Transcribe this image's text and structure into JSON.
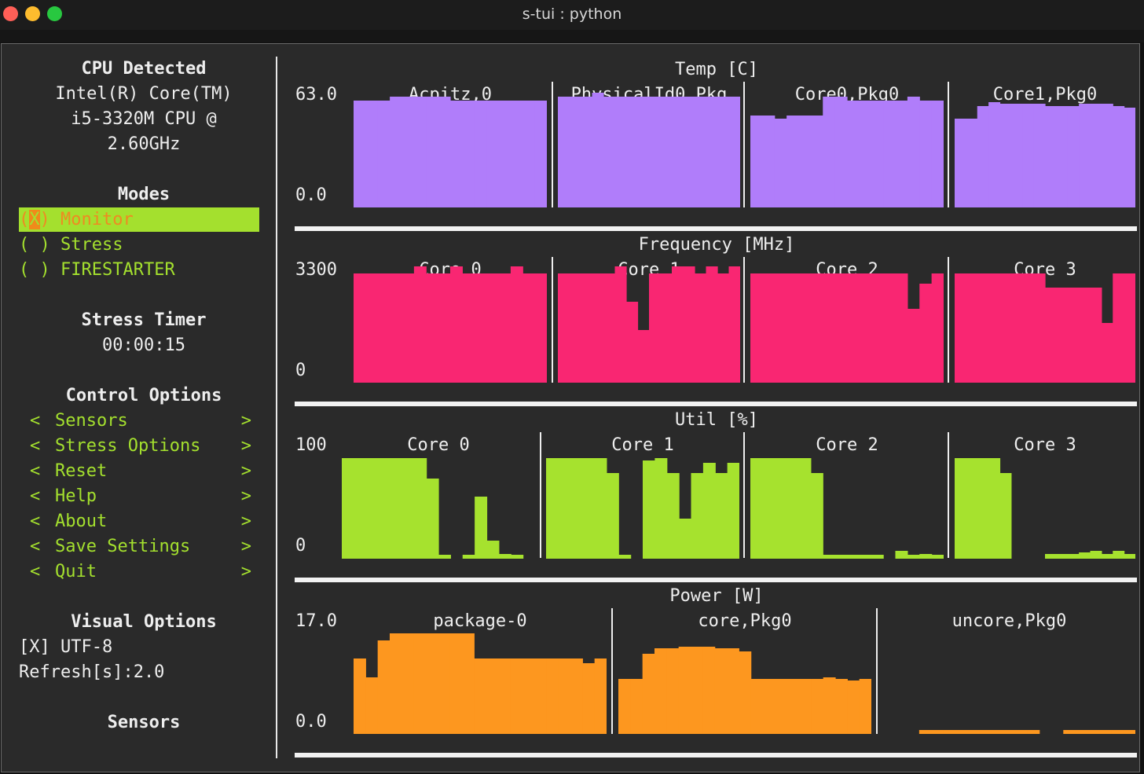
{
  "window": {
    "title": "s-tui : python"
  },
  "sidebar": {
    "cpu_header": "CPU Detected",
    "cpu_lines": [
      "Intel(R) Core(TM)",
      "i5-3320M CPU @",
      "2.60GHz"
    ],
    "modes_header": "Modes",
    "modes": [
      {
        "prefix": "(",
        "mark": "X",
        "suffix": ") Monitor",
        "selected": true
      },
      {
        "prefix": "(",
        "mark": " ",
        "suffix": ") Stress",
        "selected": false
      },
      {
        "prefix": "(",
        "mark": " ",
        "suffix": ") FIRESTARTER",
        "selected": false
      }
    ],
    "stress_timer_header": "Stress Timer",
    "stress_timer": "00:00:15",
    "control_header": "Control Options",
    "control_options": [
      "Sensors",
      "Stress Options",
      "Reset",
      "Help",
      "About",
      "Save Settings",
      "Quit"
    ],
    "arrow_left": "<",
    "arrow_right": ">",
    "visual_header": "Visual Options",
    "utf8_option": "[X] UTF-8",
    "refresh": "Refresh[s]:2.0",
    "sensors_header": "Sensors"
  },
  "colors": {
    "temp": "#b07dfa",
    "freq": "#f92672",
    "util": "#a6e22e",
    "power": "#fd971f",
    "accent": "#a4e02e",
    "selected_text": "#ef8a22"
  },
  "graphs": [
    {
      "title": "Temp [C]",
      "ymax": "63.0",
      "ymin": "0.0",
      "color": "#b07dfa",
      "ylim": [
        0,
        63.0
      ],
      "sensors": [
        {
          "name": "Acpitz,0",
          "values": [
            58,
            58,
            58,
            60,
            60,
            60,
            60,
            60,
            58,
            58,
            58,
            58,
            58,
            58,
            58,
            58
          ]
        },
        {
          "name": "PhysicalId0,Pkg",
          "values": [
            60,
            60,
            60,
            62,
            60,
            60,
            60,
            60,
            60,
            60,
            60,
            60,
            60,
            60,
            60,
            60
          ]
        },
        {
          "name": "Core0,Pkg0",
          "values": [
            50,
            50,
            48,
            50,
            50,
            50,
            60,
            60,
            58,
            58,
            58,
            58,
            58,
            60,
            58,
            58
          ]
        },
        {
          "name": "Core1,Pkg0",
          "values": [
            48,
            48,
            55,
            57,
            56,
            56,
            56,
            56,
            55,
            55,
            55,
            56,
            56,
            56,
            55,
            54
          ]
        }
      ]
    },
    {
      "title": "Frequency [MHz]",
      "ymax": "3300",
      "ymin": "0",
      "color": "#f92672",
      "ylim": [
        0,
        3300
      ],
      "sensors": [
        {
          "name": "Core 0",
          "values": [
            3100,
            3100,
            3100,
            3100,
            3100,
            3300,
            3100,
            3100,
            3300,
            3100,
            3100,
            3100,
            3100,
            3300,
            3100,
            3100
          ]
        },
        {
          "name": "Core 1",
          "values": [
            3100,
            3100,
            3100,
            3100,
            3100,
            3300,
            2300,
            1500,
            3100,
            3100,
            3300,
            3300,
            3100,
            3300,
            3100,
            3300
          ]
        },
        {
          "name": "Core 2",
          "values": [
            3100,
            3100,
            3100,
            3100,
            3100,
            3100,
            3100,
            3100,
            3100,
            3100,
            3100,
            3100,
            3100,
            2100,
            2800,
            3100
          ]
        },
        {
          "name": "Core 3",
          "values": [
            3100,
            3100,
            3100,
            3100,
            3100,
            3100,
            3100,
            3100,
            2700,
            2700,
            2700,
            2700,
            2700,
            1700,
            3100,
            3100
          ]
        }
      ]
    },
    {
      "title": "Util [%]",
      "ymax": "100",
      "ymin": "0",
      "color": "#a6e22e",
      "ylim": [
        0,
        100
      ],
      "sensors": [
        {
          "name": "Core 0",
          "values": [
            100,
            100,
            100,
            100,
            100,
            100,
            100,
            80,
            2,
            0,
            2,
            62,
            18,
            5,
            2,
            0
          ]
        },
        {
          "name": "Core 1",
          "values": [
            100,
            100,
            100,
            100,
            100,
            85,
            2,
            0,
            98,
            100,
            85,
            40,
            85,
            95,
            85,
            95
          ]
        },
        {
          "name": "Core 2",
          "values": [
            100,
            100,
            100,
            100,
            100,
            85,
            2,
            2,
            2,
            2,
            2,
            0,
            8,
            2,
            5,
            2
          ]
        },
        {
          "name": "Core 3",
          "values": [
            100,
            100,
            100,
            100,
            85,
            0,
            0,
            0,
            5,
            5,
            5,
            6,
            8,
            5,
            8,
            5
          ]
        }
      ]
    },
    {
      "title": "Power [W]",
      "ymax": "17.0",
      "ymin": "0.0",
      "color": "#fd971f",
      "ylim": [
        0,
        17.0
      ],
      "sensors": [
        {
          "name": "package-0",
          "values": [
            12.7,
            9.5,
            15.8,
            17.0,
            17.0,
            17.0,
            17.0,
            17.0,
            17.0,
            17.0,
            12.7,
            12.7,
            12.7,
            12.7,
            12.7,
            12.7,
            12.7,
            12.7,
            12.7,
            12.0,
            12.7
          ]
        },
        {
          "name": "core,Pkg0",
          "values": [
            9.3,
            9.3,
            13.5,
            14.5,
            14.5,
            14.8,
            14.8,
            14.8,
            14.5,
            14.5,
            14.0,
            9.3,
            9.3,
            9.3,
            9.3,
            9.3,
            9.3,
            9.5,
            9.3,
            9.0,
            9.3
          ]
        },
        {
          "name": "uncore,Pkg0",
          "values": [
            0,
            0,
            0,
            0.3,
            0.3,
            0.3,
            0.3,
            0.3,
            0.3,
            0.3,
            0.3,
            0.3,
            0.3,
            0,
            0,
            0.3,
            0.3,
            0.3,
            0.3,
            0.3,
            0.3
          ]
        }
      ]
    }
  ]
}
